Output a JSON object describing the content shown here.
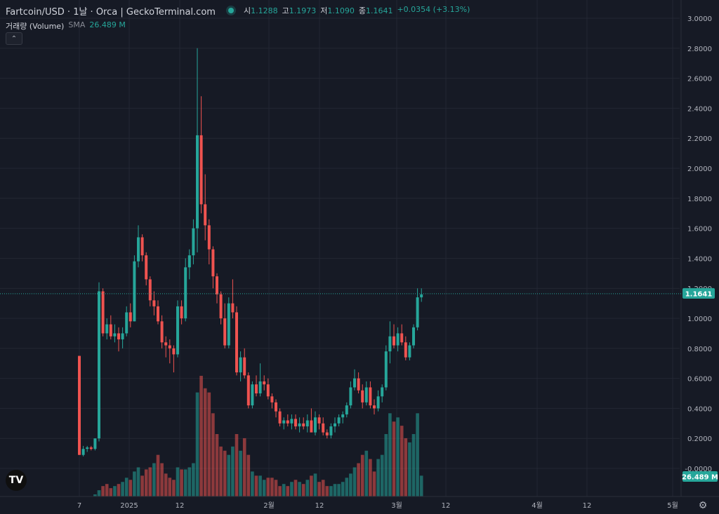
{
  "header": {
    "title": "Fartcoin/USD · 1날 · Orca  |  GeckoTerminal.com",
    "open_key": "시",
    "open": "1.1288",
    "high_key": "고",
    "high": "1.1973",
    "low_key": "저",
    "low": "1.1090",
    "close_key": "종",
    "close": "1.1641",
    "change": "+0.0354 (+3.13%)"
  },
  "volume_legend": {
    "name": "거래량 (Volume)",
    "indicator": "SMA",
    "value": "26.489 M"
  },
  "colors": {
    "up": "#26a69a",
    "down": "#ef5350",
    "background": "#161a25"
  },
  "icons": [
    "status-dot-icon",
    "collapse-chevron-icon",
    "tradingview-logo-icon",
    "gear-icon"
  ],
  "logo_text": "TV",
  "chart_data": {
    "type": "candlestick",
    "y_axis": {
      "ticks": [
        "3.0000",
        "2.8000",
        "2.6000",
        "2.4000",
        "2.2000",
        "2.0000",
        "1.8000",
        "1.6000",
        "1.4000",
        "1.2000",
        "1.0000",
        "0.8000",
        "0.6000",
        "0.4000",
        "0.2000",
        "-0.0000"
      ],
      "min": -0.1,
      "max": 3.05
    },
    "x_axis": {
      "ticks": [
        "7",
        "2025",
        "12",
        "2월",
        "12",
        "3월",
        "12",
        "4월",
        "12",
        "5월"
      ]
    },
    "last_price_label": "1.1641",
    "volume_label": "26.489 M",
    "candles": [
      [
        0.75,
        0.75,
        0.09,
        0.09
      ],
      [
        0.09,
        0.15,
        0.08,
        0.13
      ],
      [
        0.13,
        0.15,
        0.11,
        0.14
      ],
      [
        0.14,
        0.15,
        0.12,
        0.13
      ],
      [
        0.13,
        0.2,
        0.12,
        0.2
      ],
      [
        0.2,
        1.24,
        0.18,
        1.18
      ],
      [
        1.18,
        1.2,
        0.88,
        0.9
      ],
      [
        0.9,
        1.0,
        0.86,
        0.96
      ],
      [
        0.96,
        1.02,
        0.86,
        0.88
      ],
      [
        0.88,
        0.96,
        0.84,
        0.9
      ],
      [
        0.9,
        0.94,
        0.78,
        0.86
      ],
      [
        0.86,
        0.94,
        0.8,
        0.9
      ],
      [
        0.9,
        1.08,
        0.88,
        1.04
      ],
      [
        1.04,
        1.1,
        0.94,
        0.98
      ],
      [
        0.98,
        1.42,
        0.98,
        1.38
      ],
      [
        1.38,
        1.62,
        1.34,
        1.54
      ],
      [
        1.54,
        1.56,
        1.38,
        1.42
      ],
      [
        1.42,
        1.44,
        1.22,
        1.26
      ],
      [
        1.26,
        1.28,
        1.08,
        1.12
      ],
      [
        1.12,
        1.18,
        1.02,
        1.08
      ],
      [
        1.08,
        1.12,
        0.96,
        0.98
      ],
      [
        0.98,
        1.02,
        0.8,
        0.84
      ],
      [
        0.84,
        0.88,
        0.74,
        0.82
      ],
      [
        0.82,
        0.86,
        0.7,
        0.8
      ],
      [
        0.8,
        0.82,
        0.64,
        0.76
      ],
      [
        0.76,
        1.12,
        0.74,
        1.08
      ],
      [
        1.08,
        1.12,
        0.96,
        1.0
      ],
      [
        1.0,
        1.4,
        0.98,
        1.34
      ],
      [
        1.34,
        1.46,
        1.26,
        1.42
      ],
      [
        1.42,
        1.66,
        1.36,
        1.6
      ],
      [
        1.6,
        2.8,
        1.44,
        2.22
      ],
      [
        2.22,
        2.48,
        1.7,
        1.76
      ],
      [
        1.76,
        1.96,
        1.52,
        1.62
      ],
      [
        1.62,
        1.66,
        1.36,
        1.46
      ],
      [
        1.46,
        1.48,
        1.2,
        1.28
      ],
      [
        1.28,
        1.3,
        1.1,
        1.16
      ],
      [
        1.16,
        1.18,
        0.96,
        1.0
      ],
      [
        1.0,
        1.1,
        0.8,
        0.82
      ],
      [
        0.82,
        1.14,
        0.8,
        1.1
      ],
      [
        1.1,
        1.26,
        1.0,
        1.04
      ],
      [
        1.04,
        1.08,
        0.62,
        0.64
      ],
      [
        0.64,
        0.78,
        0.58,
        0.74
      ],
      [
        0.74,
        0.8,
        0.6,
        0.62
      ],
      [
        0.62,
        0.64,
        0.4,
        0.42
      ],
      [
        0.42,
        0.58,
        0.4,
        0.56
      ],
      [
        0.56,
        0.62,
        0.48,
        0.5
      ],
      [
        0.5,
        0.7,
        0.48,
        0.58
      ],
      [
        0.58,
        0.62,
        0.52,
        0.56
      ],
      [
        0.56,
        0.6,
        0.46,
        0.48
      ],
      [
        0.48,
        0.5,
        0.4,
        0.44
      ],
      [
        0.44,
        0.46,
        0.34,
        0.38
      ],
      [
        0.38,
        0.4,
        0.28,
        0.3
      ],
      [
        0.3,
        0.34,
        0.26,
        0.32
      ],
      [
        0.32,
        0.36,
        0.28,
        0.3
      ],
      [
        0.3,
        0.36,
        0.26,
        0.33
      ],
      [
        0.33,
        0.36,
        0.26,
        0.28
      ],
      [
        0.28,
        0.34,
        0.24,
        0.3
      ],
      [
        0.3,
        0.34,
        0.26,
        0.28
      ],
      [
        0.28,
        0.36,
        0.24,
        0.32
      ],
      [
        0.32,
        0.4,
        0.26,
        0.24
      ],
      [
        0.24,
        0.38,
        0.22,
        0.34
      ],
      [
        0.34,
        0.36,
        0.26,
        0.3
      ],
      [
        0.3,
        0.34,
        0.22,
        0.24
      ],
      [
        0.24,
        0.26,
        0.2,
        0.22
      ],
      [
        0.22,
        0.3,
        0.2,
        0.28
      ],
      [
        0.28,
        0.34,
        0.24,
        0.3
      ],
      [
        0.3,
        0.36,
        0.28,
        0.34
      ],
      [
        0.34,
        0.38,
        0.3,
        0.36
      ],
      [
        0.36,
        0.44,
        0.34,
        0.42
      ],
      [
        0.42,
        0.58,
        0.4,
        0.54
      ],
      [
        0.54,
        0.66,
        0.52,
        0.6
      ],
      [
        0.6,
        0.64,
        0.5,
        0.52
      ],
      [
        0.52,
        0.56,
        0.4,
        0.44
      ],
      [
        0.44,
        0.58,
        0.42,
        0.54
      ],
      [
        0.54,
        0.58,
        0.4,
        0.42
      ],
      [
        0.42,
        0.46,
        0.36,
        0.4
      ],
      [
        0.4,
        0.52,
        0.38,
        0.48
      ],
      [
        0.48,
        0.56,
        0.44,
        0.54
      ],
      [
        0.54,
        0.82,
        0.52,
        0.78
      ],
      [
        0.78,
        0.98,
        0.7,
        0.88
      ],
      [
        0.88,
        0.96,
        0.8,
        0.82
      ],
      [
        0.82,
        0.94,
        0.78,
        0.9
      ],
      [
        0.9,
        0.96,
        0.82,
        0.84
      ],
      [
        0.84,
        0.88,
        0.72,
        0.74
      ],
      [
        0.74,
        0.84,
        0.72,
        0.82
      ],
      [
        0.82,
        0.96,
        0.8,
        0.94
      ],
      [
        0.94,
        1.2,
        0.92,
        1.14
      ],
      [
        1.14,
        1.2,
        1.11,
        1.16
      ]
    ],
    "volumes": [
      [
        0.0,
        "down"
      ],
      [
        0.0,
        "up"
      ],
      [
        0.0,
        "up"
      ],
      [
        0.0,
        "up"
      ],
      [
        0.01,
        "up"
      ],
      [
        0.03,
        "up"
      ],
      [
        0.05,
        "down"
      ],
      [
        0.06,
        "down"
      ],
      [
        0.04,
        "down"
      ],
      [
        0.05,
        "up"
      ],
      [
        0.06,
        "down"
      ],
      [
        0.07,
        "up"
      ],
      [
        0.09,
        "up"
      ],
      [
        0.08,
        "down"
      ],
      [
        0.12,
        "up"
      ],
      [
        0.14,
        "up"
      ],
      [
        0.1,
        "down"
      ],
      [
        0.13,
        "down"
      ],
      [
        0.14,
        "down"
      ],
      [
        0.16,
        "up"
      ],
      [
        0.2,
        "down"
      ],
      [
        0.16,
        "down"
      ],
      [
        0.11,
        "down"
      ],
      [
        0.09,
        "down"
      ],
      [
        0.08,
        "down"
      ],
      [
        0.14,
        "up"
      ],
      [
        0.13,
        "down"
      ],
      [
        0.13,
        "up"
      ],
      [
        0.14,
        "up"
      ],
      [
        0.16,
        "up"
      ],
      [
        0.5,
        "up"
      ],
      [
        0.58,
        "down"
      ],
      [
        0.52,
        "down"
      ],
      [
        0.5,
        "down"
      ],
      [
        0.4,
        "down"
      ],
      [
        0.3,
        "down"
      ],
      [
        0.24,
        "down"
      ],
      [
        0.22,
        "down"
      ],
      [
        0.2,
        "up"
      ],
      [
        0.24,
        "up"
      ],
      [
        0.3,
        "down"
      ],
      [
        0.22,
        "up"
      ],
      [
        0.28,
        "down"
      ],
      [
        0.2,
        "down"
      ],
      [
        0.12,
        "up"
      ],
      [
        0.1,
        "down"
      ],
      [
        0.1,
        "up"
      ],
      [
        0.08,
        "up"
      ],
      [
        0.09,
        "down"
      ],
      [
        0.09,
        "down"
      ],
      [
        0.08,
        "down"
      ],
      [
        0.05,
        "down"
      ],
      [
        0.06,
        "up"
      ],
      [
        0.05,
        "down"
      ],
      [
        0.07,
        "up"
      ],
      [
        0.08,
        "down"
      ],
      [
        0.07,
        "up"
      ],
      [
        0.06,
        "down"
      ],
      [
        0.08,
        "up"
      ],
      [
        0.1,
        "down"
      ],
      [
        0.11,
        "up"
      ],
      [
        0.07,
        "down"
      ],
      [
        0.08,
        "down"
      ],
      [
        0.05,
        "down"
      ],
      [
        0.05,
        "up"
      ],
      [
        0.06,
        "up"
      ],
      [
        0.06,
        "up"
      ],
      [
        0.07,
        "up"
      ],
      [
        0.09,
        "up"
      ],
      [
        0.11,
        "up"
      ],
      [
        0.14,
        "up"
      ],
      [
        0.16,
        "down"
      ],
      [
        0.2,
        "down"
      ],
      [
        0.22,
        "up"
      ],
      [
        0.18,
        "down"
      ],
      [
        0.12,
        "down"
      ],
      [
        0.18,
        "up"
      ],
      [
        0.2,
        "up"
      ],
      [
        0.3,
        "up"
      ],
      [
        0.4,
        "up"
      ],
      [
        0.36,
        "down"
      ],
      [
        0.38,
        "up"
      ],
      [
        0.34,
        "down"
      ],
      [
        0.28,
        "down"
      ],
      [
        0.26,
        "up"
      ],
      [
        0.3,
        "up"
      ],
      [
        0.4,
        "up"
      ],
      [
        0.1,
        "up"
      ]
    ]
  }
}
